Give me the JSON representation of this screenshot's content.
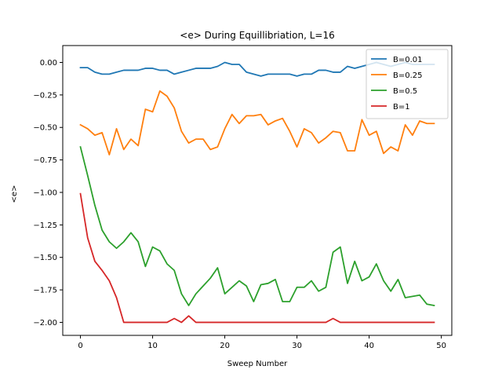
{
  "chart_data": {
    "type": "line",
    "title": "<e> During Equillibriation, L=16",
    "xlabel": "Sweep Number",
    "ylabel": "<e>",
    "xlim": [
      -2.45,
      51.45
    ],
    "ylim": [
      -2.1,
      0.13
    ],
    "xticks": [
      0,
      10,
      20,
      30,
      40,
      50
    ],
    "yticks": [
      0.0,
      -0.25,
      -0.5,
      -0.75,
      -1.0,
      -1.25,
      -1.5,
      -1.75,
      -2.0
    ],
    "ytick_labels": [
      "0.00",
      "−0.25",
      "−0.50",
      "−0.75",
      "−1.00",
      "−1.25",
      "−1.50",
      "−1.75",
      "−2.00"
    ],
    "grid": false,
    "legend_position": "top-right",
    "series": [
      {
        "name": "B=0.01",
        "color": "#1f77b4",
        "values": [
          -0.04,
          -0.04,
          -0.075,
          -0.09,
          -0.09,
          -0.075,
          -0.06,
          -0.06,
          -0.06,
          -0.045,
          -0.045,
          -0.06,
          -0.06,
          -0.09,
          -0.075,
          -0.06,
          -0.045,
          -0.045,
          -0.045,
          -0.03,
          0.0,
          -0.015,
          -0.015,
          -0.075,
          -0.09,
          -0.105,
          -0.09,
          -0.09,
          -0.09,
          -0.09,
          -0.105,
          -0.09,
          -0.09,
          -0.06,
          -0.06,
          -0.075,
          -0.075,
          -0.03,
          -0.045,
          -0.03,
          -0.015,
          0.0,
          -0.015,
          -0.03,
          -0.015,
          0.0,
          -0.015,
          -0.015,
          -0.015,
          -0.015
        ]
      },
      {
        "name": "B=0.25",
        "color": "#ff7f0e",
        "values": [
          -0.48,
          -0.51,
          -0.56,
          -0.54,
          -0.71,
          -0.51,
          -0.67,
          -0.59,
          -0.64,
          -0.36,
          -0.38,
          -0.22,
          -0.26,
          -0.35,
          -0.53,
          -0.62,
          -0.59,
          -0.59,
          -0.67,
          -0.65,
          -0.51,
          -0.4,
          -0.47,
          -0.41,
          -0.41,
          -0.4,
          -0.48,
          -0.45,
          -0.43,
          -0.53,
          -0.65,
          -0.51,
          -0.54,
          -0.62,
          -0.58,
          -0.53,
          -0.54,
          -0.68,
          -0.68,
          -0.44,
          -0.56,
          -0.53,
          -0.7,
          -0.65,
          -0.68,
          -0.48,
          -0.56,
          -0.45,
          -0.47,
          -0.47
        ]
      },
      {
        "name": "B=0.5",
        "color": "#2ca02c",
        "values": [
          -0.65,
          -0.87,
          -1.1,
          -1.29,
          -1.38,
          -1.43,
          -1.38,
          -1.31,
          -1.38,
          -1.57,
          -1.42,
          -1.45,
          -1.55,
          -1.6,
          -1.78,
          -1.87,
          -1.78,
          -1.72,
          -1.66,
          -1.58,
          -1.78,
          -1.73,
          -1.68,
          -1.72,
          -1.84,
          -1.71,
          -1.7,
          -1.67,
          -1.84,
          -1.84,
          -1.73,
          -1.73,
          -1.68,
          -1.76,
          -1.73,
          -1.46,
          -1.42,
          -1.7,
          -1.53,
          -1.68,
          -1.65,
          -1.55,
          -1.68,
          -1.76,
          -1.67,
          -1.81,
          -1.8,
          -1.79,
          -1.86,
          -1.87
        ]
      },
      {
        "name": "B=1",
        "color": "#d62728",
        "values": [
          -1.01,
          -1.35,
          -1.53,
          -1.6,
          -1.68,
          -1.81,
          -2.0,
          -2.0,
          -2.0,
          -2.0,
          -2.0,
          -2.0,
          -2.0,
          -1.97,
          -2.0,
          -1.95,
          -2.0,
          -2.0,
          -2.0,
          -2.0,
          -2.0,
          -2.0,
          -2.0,
          -2.0,
          -2.0,
          -2.0,
          -2.0,
          -2.0,
          -2.0,
          -2.0,
          -2.0,
          -2.0,
          -2.0,
          -2.0,
          -2.0,
          -1.97,
          -2.0,
          -2.0,
          -2.0,
          -2.0,
          -2.0,
          -2.0,
          -2.0,
          -2.0,
          -2.0,
          -2.0,
          -2.0,
          -2.0,
          -2.0,
          -2.0
        ]
      }
    ]
  }
}
